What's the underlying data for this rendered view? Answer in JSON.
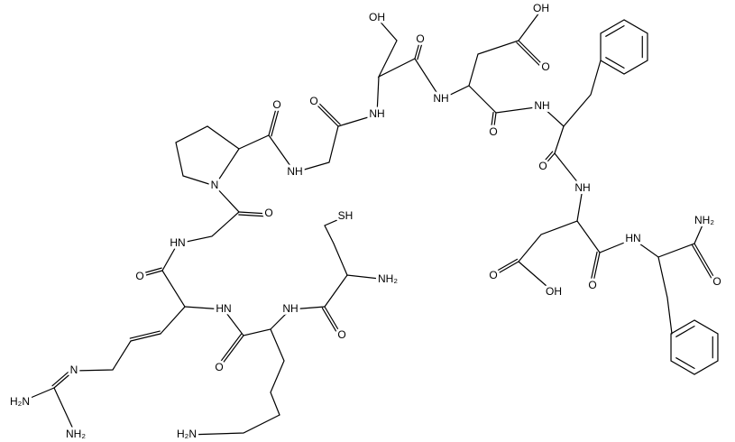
{
  "atoms": [
    "OH",
    "OH",
    "O",
    "O",
    "NH",
    "NH",
    "NH",
    "O",
    "O",
    "O",
    "O",
    "NH",
    "N",
    "NH",
    "SH",
    "O",
    "NH₂",
    "HN",
    "HN",
    "NH₂",
    "O",
    "O",
    "O",
    "O",
    "OH",
    "HN",
    "NH",
    "O",
    "O",
    "N",
    "H₂N",
    "NH₂",
    "H₂N"
  ]
}
